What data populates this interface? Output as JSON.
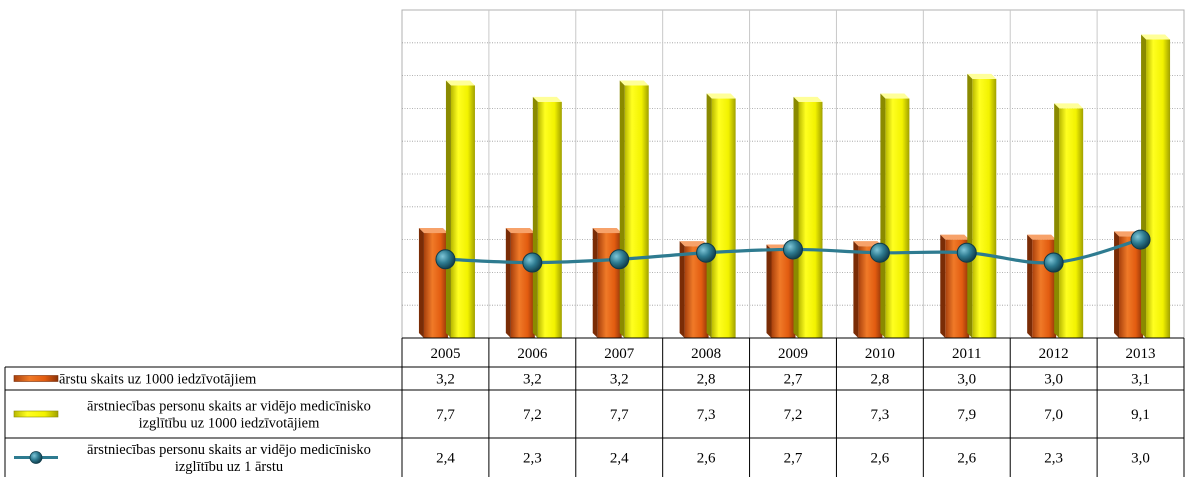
{
  "chart_data": {
    "type": "bar",
    "categories": [
      "2005",
      "2006",
      "2007",
      "2008",
      "2009",
      "2010",
      "2011",
      "2012",
      "2013"
    ],
    "ylim": [
      0,
      10
    ],
    "grid": true,
    "legend_placement": "data-table-left",
    "series": [
      {
        "name": "ārstu skaits uz 1000 iedzīvotājiem",
        "name_lines": [
          "ārstu skaits uz 1000 iedzīvotājiem"
        ],
        "chart_type": "bar",
        "color": "#e8661a",
        "values": [
          3.2,
          3.2,
          3.2,
          2.8,
          2.7,
          2.8,
          3.0,
          3.0,
          3.1
        ],
        "labels": [
          "3,2",
          "3,2",
          "3,2",
          "2,8",
          "2,7",
          "2,8",
          "3,0",
          "3,0",
          "3,1"
        ]
      },
      {
        "name": "ārstniecības personu skaits ar vidējo medicīnisko izglītību uz 1000 iedzīvotājiem",
        "name_lines": [
          "ārstniecības personu skaits ar vidējo medicīnisko",
          "izglītību uz 1000 iedzīvotājiem"
        ],
        "chart_type": "bar",
        "color": "#ffff00",
        "values": [
          7.7,
          7.2,
          7.7,
          7.3,
          7.2,
          7.3,
          7.9,
          7.0,
          9.1
        ],
        "labels": [
          "7,7",
          "7,2",
          "7,7",
          "7,3",
          "7,2",
          "7,3",
          "7,9",
          "7,0",
          "9,1"
        ]
      },
      {
        "name": "ārstniecības personu skaits ar vidējo medicīnisko izglītību uz 1 ārstu",
        "name_lines": [
          "ārstniecības personu skaits ar vidējo medicīnisko",
          "izglītību uz 1 ārstu"
        ],
        "chart_type": "line",
        "color": "#2e7b90",
        "values": [
          2.4,
          2.3,
          2.4,
          2.6,
          2.7,
          2.6,
          2.6,
          2.3,
          3.0
        ],
        "labels": [
          "2,4",
          "2,3",
          "2,4",
          "2,6",
          "2,7",
          "2,6",
          "2,6",
          "2,3",
          "3,0"
        ]
      }
    ]
  }
}
